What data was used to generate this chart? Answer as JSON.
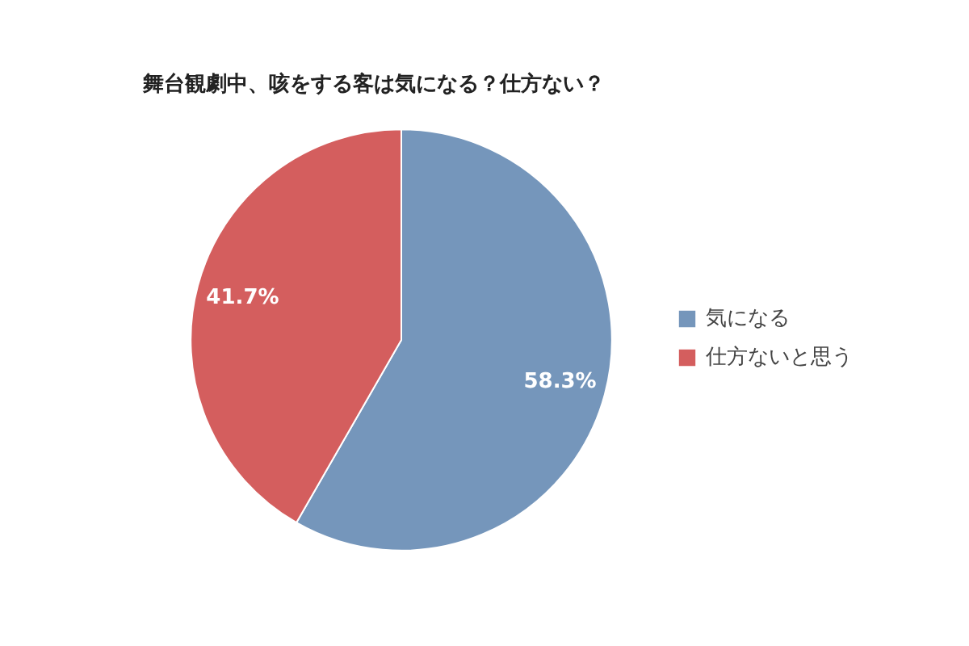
{
  "chart_data": {
    "type": "pie",
    "title": "舞台観劇中、咳をする客は気になる？仕方ない？",
    "categories": [
      "気になる",
      "仕方ないと思う"
    ],
    "values": [
      58.3,
      41.7
    ],
    "colors": [
      "#7596bb",
      "#d45e5e"
    ],
    "value_labels": [
      "58.3%",
      "41.7%"
    ],
    "legend": "right"
  }
}
